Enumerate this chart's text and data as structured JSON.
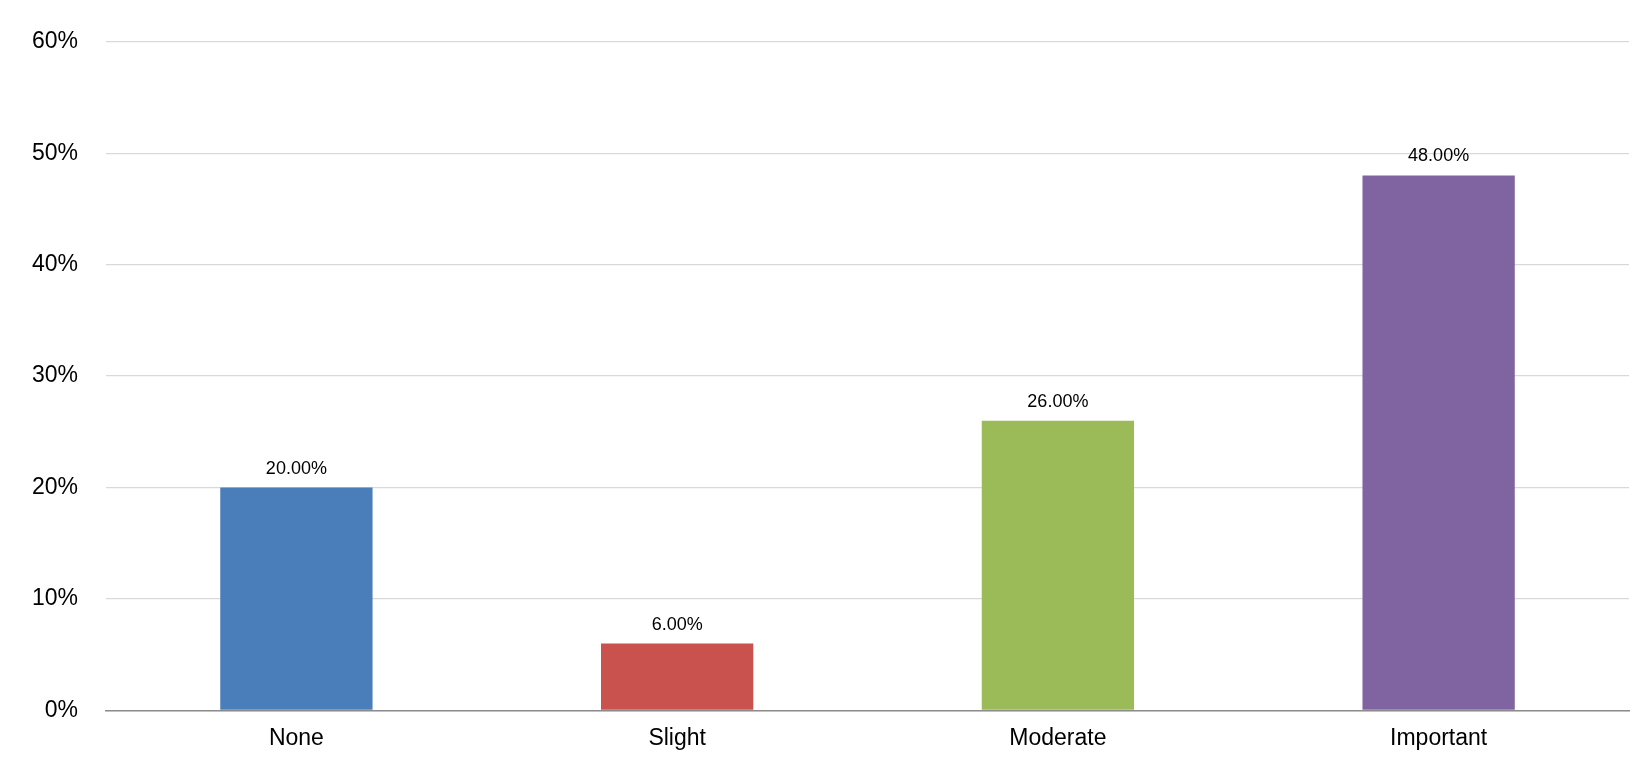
{
  "chart_data": {
    "type": "bar",
    "categories": [
      "None",
      "Slight",
      "Moderate",
      "Important"
    ],
    "values": [
      20,
      6,
      26,
      48
    ],
    "colors": [
      "#4a7ebb",
      "#c9514e",
      "#9bbb59",
      "#8064a2"
    ],
    "value_labels": [
      "20.00%",
      "6.00%",
      "26.00%",
      "48.00%"
    ],
    "ylim": [
      0,
      60
    ],
    "yticks": [
      {
        "value": 0,
        "label": "0%"
      },
      {
        "value": 10,
        "label": "10%"
      },
      {
        "value": 20,
        "label": "20%"
      },
      {
        "value": 30,
        "label": "30%"
      },
      {
        "value": 40,
        "label": "40%"
      },
      {
        "value": 50,
        "label": "50%"
      },
      {
        "value": 60,
        "label": "60%"
      }
    ],
    "grid": "y",
    "legend": false
  }
}
